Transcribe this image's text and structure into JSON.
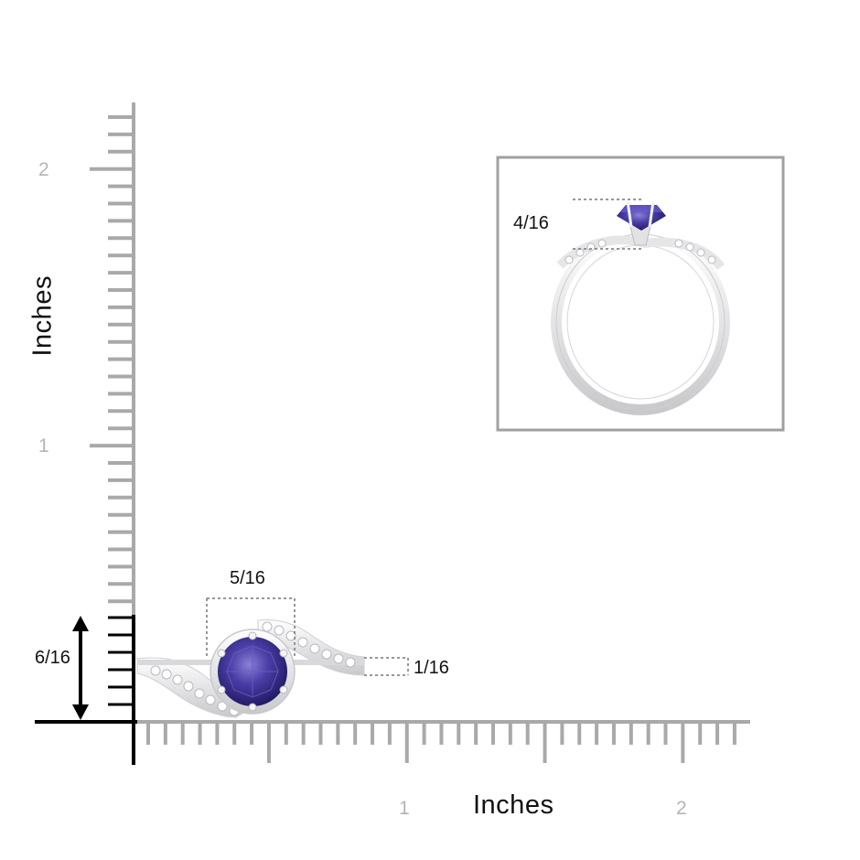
{
  "y_axis": {
    "title": "Inches",
    "tick_labels": [
      "2",
      "1"
    ]
  },
  "x_axis": {
    "title": "Inches",
    "tick_labels": [
      "1",
      "2"
    ]
  },
  "dimensions": {
    "stone_width": "5/16",
    "band_width": "1/16",
    "setting_height_top_view": "6/16",
    "setting_height_side_view": "4/16"
  },
  "colors": {
    "ruler": "#a9a9a9",
    "axis": "#000000",
    "stone": "#3b2f8f",
    "metal": "#e8e8ea",
    "inset_border": "#a0a0a0"
  }
}
